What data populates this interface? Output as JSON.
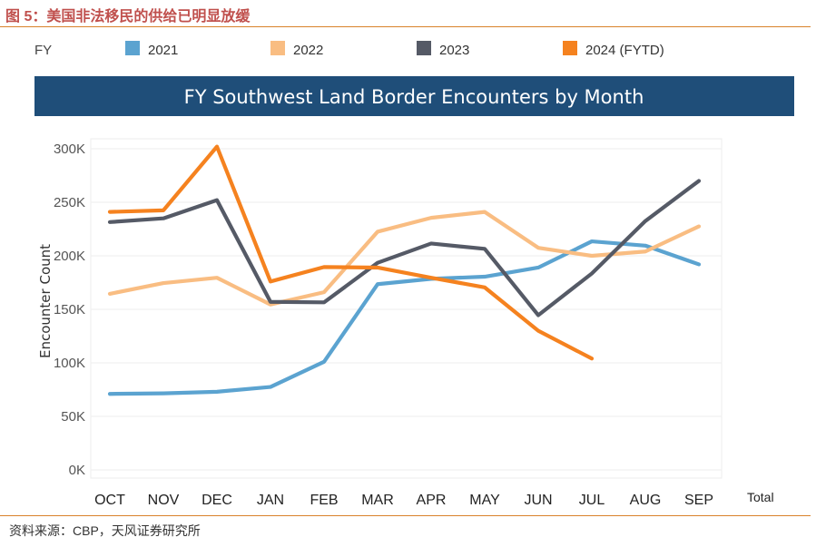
{
  "figure": {
    "caption": "图 5：美国非法移民的供给已明显放缓",
    "source": "资料来源：CBP，天风证券研究所"
  },
  "chart_data": {
    "type": "line",
    "title": "FY Southwest Land Border Encounters by Month",
    "legend_label": "FY",
    "legend_position": "top",
    "xlabel": "",
    "ylabel": "Encounter Count",
    "categories": [
      "OCT",
      "NOV",
      "DEC",
      "JAN",
      "FEB",
      "MAR",
      "APR",
      "MAY",
      "JUN",
      "JUL",
      "AUG",
      "SEP"
    ],
    "extra_category": "Total",
    "ylim": [
      0,
      300000
    ],
    "yticks": [
      0,
      50000,
      100000,
      150000,
      200000,
      250000,
      300000
    ],
    "ytick_labels": [
      "0K",
      "50K",
      "100K",
      "150K",
      "200K",
      "250K",
      "300K"
    ],
    "grid": true,
    "series": [
      {
        "name": "2021",
        "color": "#5ba3d0",
        "values": [
          71000,
          71500,
          73000,
          77500,
          101000,
          173500,
          178500,
          180500,
          189000,
          213500,
          209500,
          192000
        ]
      },
      {
        "name": "2022",
        "color": "#f9bd82",
        "values": [
          164500,
          174500,
          179500,
          154500,
          166000,
          222500,
          235500,
          241000,
          207500,
          200000,
          204000,
          227500
        ]
      },
      {
        "name": "2023",
        "color": "#555a66",
        "values": [
          231500,
          235000,
          252000,
          157000,
          156500,
          193500,
          211500,
          206500,
          144500,
          183500,
          232500,
          270000
        ]
      },
      {
        "name": "2024 (FYTD)",
        "color": "#f5821f",
        "values": [
          241000,
          242500,
          302000,
          176000,
          189500,
          189000,
          179500,
          170500,
          130000,
          104000,
          null,
          null
        ]
      }
    ],
    "colors": {
      "title_bar": "#1f4e79",
      "title_text": "#ffffff",
      "grid": "#ececec",
      "axis_text": "#555555"
    }
  }
}
